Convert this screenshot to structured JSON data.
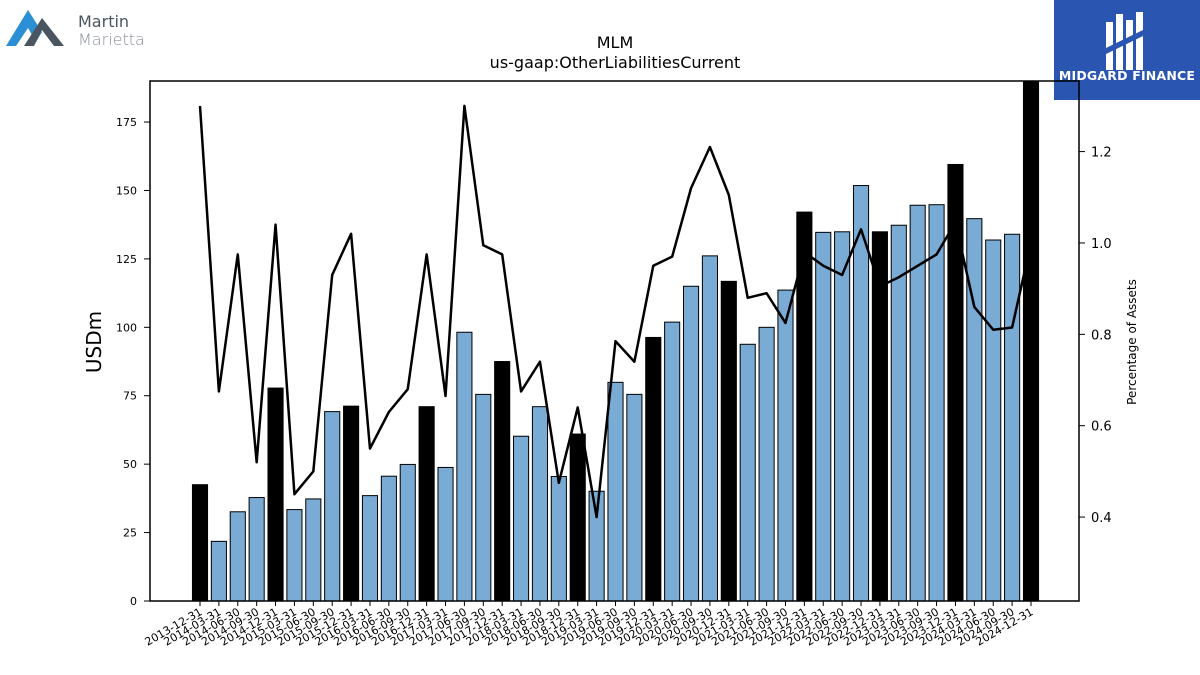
{
  "logos": {
    "left": {
      "line1": "Martin",
      "line2": "Marietta"
    },
    "right": {
      "text": "MIDGARD FINANCE"
    }
  },
  "chart_data": {
    "type": "bar",
    "title": "MLM",
    "subtitle": "us-gaap:OtherLiabilitiesCurrent",
    "ylabel": "USDm",
    "y2label": "Percentage of Assets",
    "ylim": [
      0,
      190
    ],
    "y2lim": [
      0.2163,
      1.3545
    ],
    "yticks": [
      0,
      25,
      50,
      75,
      100,
      125,
      150,
      175
    ],
    "y2ticks": [
      0.4,
      0.6,
      0.8,
      1.0,
      1.2
    ],
    "y2tick_labels": [
      "0.4",
      "0.6",
      "0.8",
      "1.0",
      "1.2"
    ],
    "colors": {
      "annual": "#000000",
      "quarterly": "#7aabd4",
      "line": "#000000"
    },
    "categories": [
      "2013-12-31",
      "2014-03-31",
      "2014-06-30",
      "2014-09-30",
      "2014-12-31",
      "2015-03-31",
      "2015-06-30",
      "2015-09-30",
      "2015-12-31",
      "2016-03-31",
      "2016-06-30",
      "2016-09-30",
      "2016-12-31",
      "2017-03-31",
      "2017-06-30",
      "2017-09-30",
      "2017-12-31",
      "2018-03-31",
      "2018-06-30",
      "2018-09-30",
      "2018-12-31",
      "2019-03-31",
      "2019-06-30",
      "2019-09-30",
      "2019-12-31",
      "2020-03-31",
      "2020-06-30",
      "2020-09-30",
      "2020-12-31",
      "2021-03-31",
      "2021-06-30",
      "2021-09-30",
      "2021-12-31",
      "2022-03-31",
      "2022-06-30",
      "2022-09-30",
      "2022-12-31",
      "2023-03-31",
      "2023-06-30",
      "2023-09-30",
      "2023-12-31",
      "2024-03-31",
      "2024-06-30",
      "2024-09-30",
      "2024-12-31"
    ],
    "series": [
      {
        "values": [
          42.5,
          21.8,
          32.6,
          37.8,
          77.8,
          33.4,
          37.3,
          69.2,
          71.2,
          38.5,
          45.6,
          49.9,
          71.0,
          48.8,
          98.2,
          75.5,
          87.5,
          60.2,
          71.0,
          45.5,
          61.0,
          40.1,
          79.9,
          75.5,
          96.3,
          101.9,
          115.0,
          126.1,
          116.8,
          93.8,
          100.0,
          113.6,
          142.1,
          134.7,
          134.9,
          151.8,
          134.9,
          137.3,
          144.6,
          144.8,
          159.5,
          139.7,
          131.9,
          134.0,
          190.0
        ],
        "annual": [
          true,
          false,
          false,
          false,
          true,
          false,
          false,
          false,
          true,
          false,
          false,
          false,
          true,
          false,
          false,
          false,
          true,
          false,
          false,
          false,
          true,
          false,
          false,
          false,
          true,
          false,
          false,
          false,
          true,
          false,
          false,
          false,
          true,
          false,
          false,
          false,
          true,
          false,
          false,
          false,
          true,
          false,
          false,
          false,
          true
        ]
      },
      {
        "type": "line",
        "axis": "right",
        "values": [
          1.3,
          0.675,
          0.975,
          0.52,
          1.04,
          0.45,
          0.5,
          0.93,
          1.02,
          0.55,
          0.63,
          0.68,
          0.975,
          0.665,
          1.3,
          0.995,
          0.975,
          0.675,
          0.74,
          0.475,
          0.64,
          0.4,
          0.785,
          0.74,
          0.95,
          0.97,
          1.12,
          1.21,
          1.105,
          0.88,
          0.89,
          0.825,
          0.98,
          0.95,
          0.93,
          1.03,
          0.905,
          0.925,
          0.95,
          0.975,
          1.045,
          0.86,
          0.81,
          0.815,
          1.0
        ]
      }
    ]
  }
}
